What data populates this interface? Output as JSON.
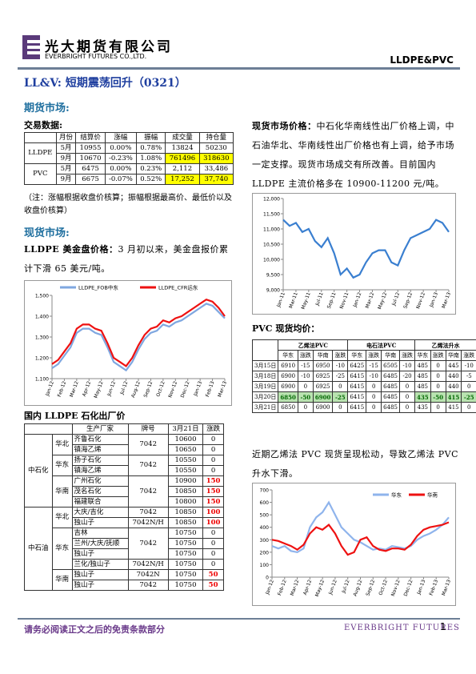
{
  "header": {
    "company_cn": "光大期货有限公司",
    "company_en": "EVERBRIGHT FUTURES CO.,LTD.",
    "product": "LLDPE&PVC"
  },
  "title": "LL&V: 短期震荡回升（0321）",
  "futures": {
    "heading": "期货市场:",
    "subheading": "交易数据:",
    "table": {
      "header": [
        "月份",
        "结算价",
        "涨幅",
        "振幅",
        "成交量",
        "持仓量"
      ],
      "groups": [
        {
          "name": "LLDPE",
          "rows": [
            [
              "5月",
              "10955",
              "0.00%",
              "0.78%",
              "13824",
              "50230"
            ],
            [
              "9月",
              "10670",
              "-0.23%",
              "1.08%",
              "761496",
              "318630"
            ]
          ]
        },
        {
          "name": "PVC",
          "rows": [
            [
              "5月",
              "6475",
              "0.00%",
              "0.23%",
              "2,112",
              "33,486"
            ],
            [
              "9月",
              "6675",
              "-0.07%",
              "0.52%",
              "17,252",
              "37,740"
            ]
          ]
        }
      ]
    },
    "note": "（注：涨幅根据收盘价核算；振幅根据最高价、最低价以及收盘价核算）"
  },
  "spot": {
    "heading": "现货市场:",
    "fob_label": "LLDPE 美金盘价格：",
    "fob_text": "3 月初以来，美金盘报价累计下滑 65 美元/吨。",
    "fob_chart": {
      "type": "line",
      "legend": "top",
      "categories": [
        "Jan-12",
        null,
        "Feb-12",
        null,
        "Mar-12",
        null,
        "Apr-12",
        null,
        "May-12",
        null,
        "Jun-12",
        null,
        "Jul-12",
        null,
        "Aug-12",
        null,
        "Sep-12",
        null,
        "Oct-12",
        null,
        "Nov-12",
        null,
        "Dec-12",
        null,
        "Jan-13",
        null,
        "Feb-13",
        null,
        "Mar-13"
      ],
      "ylim": [
        1100,
        1500
      ],
      "yticks": [
        {
          "value": 1100,
          "label": "1,100"
        },
        {
          "value": 1200,
          "label": "1,200"
        },
        {
          "value": 1300,
          "label": "1,300"
        },
        {
          "value": 1400,
          "label": "1,400"
        },
        {
          "value": 1500,
          "label": "1,500"
        }
      ],
      "series": [
        {
          "name": "LLDPE_FOB中东",
          "color": "#7fa7e0",
          "values": [
            1150,
            1170,
            1210,
            1250,
            1320,
            1340,
            1340,
            1320,
            1310,
            1250,
            1180,
            1160,
            1140,
            1180,
            1240,
            1290,
            1320,
            1330,
            1360,
            1350,
            1370,
            1380,
            1400,
            1420,
            1440,
            1460,
            1450,
            1420,
            1390
          ]
        },
        {
          "name": "LLDPE_CFR远东",
          "color": "#ee1111",
          "values": [
            1170,
            1190,
            1230,
            1270,
            1340,
            1360,
            1360,
            1340,
            1330,
            1270,
            1200,
            1180,
            1160,
            1200,
            1260,
            1310,
            1340,
            1350,
            1380,
            1370,
            1390,
            1400,
            1420,
            1440,
            1460,
            1480,
            1470,
            1440,
            1400
          ]
        }
      ]
    },
    "domestic_title": "国内 LLDPE 石化出厂价",
    "domestic_table": {
      "header": [
        "生产厂家",
        "牌号",
        "3月21日",
        "涨跌"
      ],
      "companies": [
        {
          "name": "中石化",
          "regions": [
            {
              "name": "华北",
              "grades": [
                {
                  "grade": "7042",
                  "rows": [
                    [
                      "齐鲁石化",
                      10600,
                      0
                    ],
                    [
                      "镇海乙烯",
                      10650,
                      0
                    ]
                  ]
                }
              ]
            },
            {
              "name": "华东",
              "grades": [
                {
                  "grade": "7042",
                  "rows": [
                    [
                      "扬子石化",
                      10550,
                      0
                    ],
                    [
                      "镇海乙烯",
                      10550,
                      0
                    ]
                  ]
                }
              ]
            },
            {
              "name": "华南",
              "grades": [
                {
                  "grade": "7042",
                  "rows": [
                    [
                      "广州石化",
                      10900,
                      150
                    ],
                    [
                      "茂名石化",
                      10850,
                      150
                    ],
                    [
                      "福建联合",
                      10800,
                      150
                    ]
                  ]
                }
              ]
            }
          ]
        },
        {
          "name": "中石油",
          "regions": [
            {
              "name": "华北",
              "grades": [
                {
                  "grade": "7042",
                  "rows": [
                    [
                      "大庆/吉化",
                      10850,
                      100
                    ]
                  ]
                },
                {
                  "grade": "7042N/H",
                  "rows": [
                    [
                      "独山子",
                      10850,
                      100
                    ]
                  ]
                }
              ]
            },
            {
              "name": "华东",
              "grades": [
                {
                  "grade": "7042",
                  "rows": [
                    [
                      "吉林",
                      10750,
                      0
                    ],
                    [
                      "兰州/大庆/抚顺",
                      10750,
                      0
                    ],
                    [
                      "独山子",
                      10750,
                      0
                    ]
                  ]
                },
                {
                  "grade": "7042N/H",
                  "rows": [
                    [
                      "兰化/独山子",
                      10750,
                      0
                    ]
                  ]
                }
              ]
            },
            {
              "name": "华南",
              "grades": [
                {
                  "grade": "7042N",
                  "rows": [
                    [
                      "独山子",
                      10750,
                      50
                    ]
                  ]
                },
                {
                  "grade": "7042",
                  "rows": [
                    [
                      "独山子",
                      10750,
                      50
                    ]
                  ]
                }
              ]
            }
          ]
        }
      ]
    },
    "price_label": "现货市场价格：",
    "price_text": "中石化华南线性出厂价格上调，中石油华北、华南线性出厂价格也有上调，给予市场一定支撑。现货市场成交有所改善。目前国内 LLDPE 主流价格多在 10900-11200 元/吨。",
    "price_chart": {
      "type": "line",
      "categories": [
        "Jan-11",
        null,
        "Mar-11",
        null,
        "May-11",
        null,
        "Jul-11",
        null,
        "Sep-11",
        null,
        "Nov-11",
        null,
        "Jan-12",
        null,
        "Mar-12",
        null,
        "May-12",
        null,
        "Jul-12",
        null,
        "Sep-12",
        null,
        "Nov-12",
        null,
        "Jan-13",
        null,
        "Mar-13"
      ],
      "ylim": [
        9000,
        12000
      ],
      "yticks": [
        {
          "value": 9000,
          "label": "9,000"
        },
        {
          "value": 9500,
          "label": "9,500"
        },
        {
          "value": 10000,
          "label": "10,000"
        },
        {
          "value": 10500,
          "label": "10,500"
        },
        {
          "value": 11000,
          "label": "11,000"
        },
        {
          "value": 11500,
          "label": "11,500"
        },
        {
          "value": 12000,
          "label": "12,000"
        }
      ],
      "series": [
        {
          "color": "#3a7fd0",
          "values": [
            11300,
            11100,
            11200,
            10900,
            11000,
            10600,
            10400,
            10700,
            10200,
            9500,
            9700,
            9400,
            9500,
            9900,
            10200,
            10300,
            10300,
            9900,
            9800,
            10300,
            10700,
            10800,
            10900,
            11000,
            11300,
            11200,
            10900
          ]
        }
      ]
    },
    "pvc_title": "PVC 现货均价：",
    "pvc_table": {
      "groups": [
        "乙烯法PVC",
        "电石法PVC",
        "乙烯法升水"
      ],
      "subheader": [
        "华东",
        "涨跌",
        "华南",
        "涨跌",
        "华东",
        "涨跌",
        "华南",
        "涨跌",
        "华东",
        "涨跌",
        "华南",
        "涨跌"
      ],
      "rows": [
        [
          "3月15日",
          "6910",
          "-15",
          "6950",
          "-10",
          "6425",
          "-15",
          "6505",
          "-10",
          "485",
          "0",
          "445",
          "-10"
        ],
        [
          "3月18日",
          "6900",
          "-10",
          "6925",
          "-25",
          "6415",
          "-10",
          "6485",
          "-20",
          "485",
          "0",
          "440",
          "-5"
        ],
        [
          "3月19日",
          "6900",
          "0",
          "6925",
          "0",
          "6415",
          "0",
          "6485",
          "0",
          "485",
          "0",
          "440",
          "0"
        ],
        [
          "3月20日",
          "6850",
          "-50",
          "6900",
          "-25",
          "6415",
          "0",
          "6485",
          "0",
          "435",
          "-50",
          "415",
          "-25"
        ],
        [
          "3月21日",
          "6850",
          "0",
          "6900",
          "0",
          "6415",
          "0",
          "6485",
          "0",
          "435",
          "0",
          "415",
          "0"
        ]
      ]
    },
    "pvc_text": "近期乙烯法 PVC 现货呈现松动，导致乙烯法 PVC 升水下滑。",
    "pvc_chart": {
      "type": "line",
      "legend": "top-right",
      "categories": [
        "Jan-12",
        null,
        "Feb-12",
        null,
        "Mar-12",
        null,
        "Apr-12",
        null,
        "May-12",
        null,
        "Jun-12",
        null,
        "Jul-12",
        null,
        "Aug-12",
        null,
        "Sep-12",
        null,
        "Oct-12",
        null,
        "Nov-12",
        null,
        "Dec-12",
        null,
        "Jan-13",
        null,
        "Feb-13",
        null,
        "Mar-13"
      ],
      "ylim": [
        0,
        700
      ],
      "yticks": [
        0,
        100,
        200,
        300,
        400,
        500,
        600,
        700
      ],
      "series": [
        {
          "name": "华东",
          "color": "#8fb4ec",
          "values": [
            250,
            230,
            250,
            210,
            200,
            230,
            400,
            480,
            520,
            600,
            500,
            400,
            350,
            300,
            280,
            250,
            220,
            230,
            220,
            250,
            240,
            230,
            250,
            300,
            330,
            350,
            380,
            420,
            480
          ]
        },
        {
          "name": "华南",
          "color": "#ee1111",
          "values": [
            300,
            290,
            270,
            250,
            220,
            260,
            350,
            400,
            380,
            420,
            350,
            250,
            180,
            200,
            300,
            320,
            250,
            220,
            210,
            230,
            230,
            220,
            260,
            330,
            380,
            400,
            410,
            420,
            440
          ]
        }
      ]
    }
  },
  "footer": {
    "disclaimer": "请务必阅读正文之后的免责条款部分",
    "brand": "EVERBRIGHT FUTURES",
    "page": "1"
  }
}
